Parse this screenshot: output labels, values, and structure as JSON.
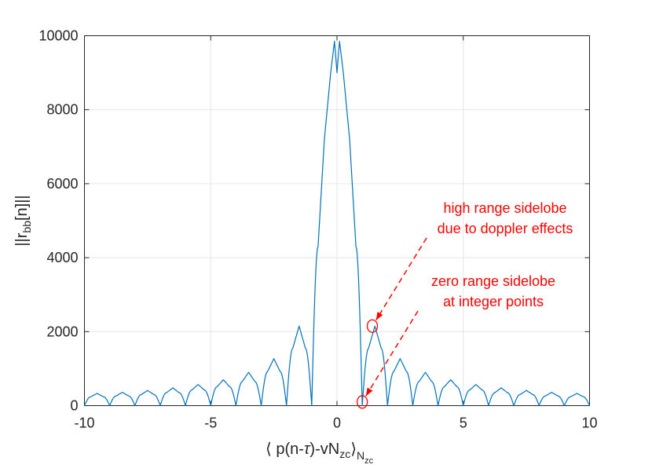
{
  "chart_data": {
    "type": "line",
    "xlabel": "⟨ p(n-τ)-vN_zc⟩_N_zc",
    "xlabel_parts": {
      "open": "⟨ p(n-",
      "tau": "τ",
      "mid": ")-vN",
      "sub_zc": "zc",
      "close": "⟩",
      "sub_N": "N",
      "sub_N_zc": "zc"
    },
    "ylabel": "||r_bb[n]||",
    "ylabel_parts": {
      "pre": "||r",
      "sub": "bb",
      "post": "[n]||"
    },
    "xlim": [
      -10,
      10
    ],
    "ylim": [
      0,
      10000
    ],
    "xticks": [
      -10,
      -5,
      0,
      5,
      10
    ],
    "yticks": [
      0,
      2000,
      4000,
      6000,
      8000,
      10000
    ],
    "xtick_labels": [
      "-10",
      "-5",
      "0",
      "5",
      "10"
    ],
    "ytick_labels": [
      "0",
      "2000",
      "4000",
      "6000",
      "8000",
      "10000"
    ],
    "grid": true,
    "series": [
      {
        "color": "#0072bd",
        "x": [
          -10,
          -9.75,
          -9.5,
          -9.25,
          -9,
          -8.75,
          -8.5,
          -8.25,
          -8,
          -7.75,
          -7.5,
          -7.25,
          -7,
          -6.75,
          -6.5,
          -6.25,
          -6,
          -5.75,
          -5.5,
          -5.25,
          -5,
          -4.75,
          -4.5,
          -4.25,
          -4,
          -3.75,
          -3.5,
          -3.25,
          -3,
          -2.75,
          -2.5,
          -2.25,
          -2,
          -1.75,
          -1.5,
          -1.25,
          -1,
          -0.75,
          -0.5,
          -0.25,
          -0.1,
          0,
          0.1,
          0.25,
          0.5,
          0.75,
          1,
          1.25,
          1.5,
          1.75,
          2,
          2.25,
          2.5,
          2.75,
          3,
          3.25,
          3.5,
          3.75,
          4,
          4.25,
          4.5,
          4.75,
          5,
          5.25,
          5.5,
          5.75,
          6,
          6.25,
          6.5,
          6.75,
          7,
          7.25,
          7.5,
          7.75,
          8,
          8.25,
          8.5,
          8.75,
          9,
          9.25,
          9.5,
          9.75,
          10
        ],
        "y": [
          0,
          240,
          330,
          240,
          0,
          260,
          360,
          260,
          0,
          300,
          410,
          300,
          0,
          350,
          480,
          350,
          0,
          420,
          570,
          420,
          0,
          510,
          700,
          510,
          0,
          650,
          900,
          650,
          0,
          920,
          1270,
          920,
          0,
          1550,
          2150,
          1550,
          0,
          4300,
          7200,
          9000,
          9850,
          9000,
          9850,
          9000,
          7200,
          4300,
          0,
          1550,
          2150,
          1550,
          0,
          920,
          1270,
          920,
          0,
          650,
          900,
          650,
          0,
          510,
          700,
          510,
          0,
          420,
          570,
          420,
          0,
          350,
          480,
          350,
          0,
          300,
          410,
          300,
          0,
          260,
          360,
          260,
          0,
          240,
          330,
          240,
          0
        ]
      }
    ],
    "annotations": [
      {
        "lines": [
          "high range sidelobe",
          "due to doppler effects"
        ],
        "color": "#ff0000",
        "target": [
          1.4,
          2150
        ]
      },
      {
        "lines": [
          "zero range sidelobe",
          "at integer points"
        ],
        "color": "#ff0000",
        "target": [
          1.0,
          100
        ]
      }
    ]
  }
}
